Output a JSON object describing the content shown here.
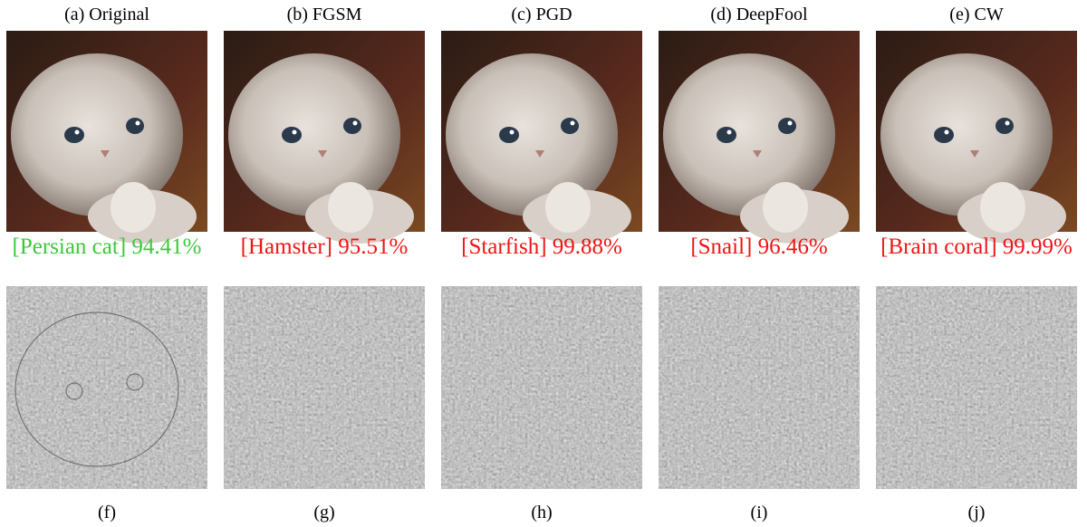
{
  "panels": [
    {
      "title": "(a) Original",
      "prediction": "[Persian cat]",
      "confidence": "94.41%"
    },
    {
      "title": "(b) FGSM",
      "prediction": "[Hamster]",
      "confidence": "95.51%"
    },
    {
      "title": "(c) PGD",
      "prediction": "[Starfish]",
      "confidence": "99.88%"
    },
    {
      "title": "(d) DeepFool",
      "prediction": "[Snail]",
      "confidence": "96.46%"
    },
    {
      "title": "(e) CW",
      "prediction": "[Brain coral]",
      "confidence": "99.99%"
    }
  ],
  "captions": [
    "(f)",
    "(g)",
    "(h)",
    "(i)",
    "(j)"
  ]
}
